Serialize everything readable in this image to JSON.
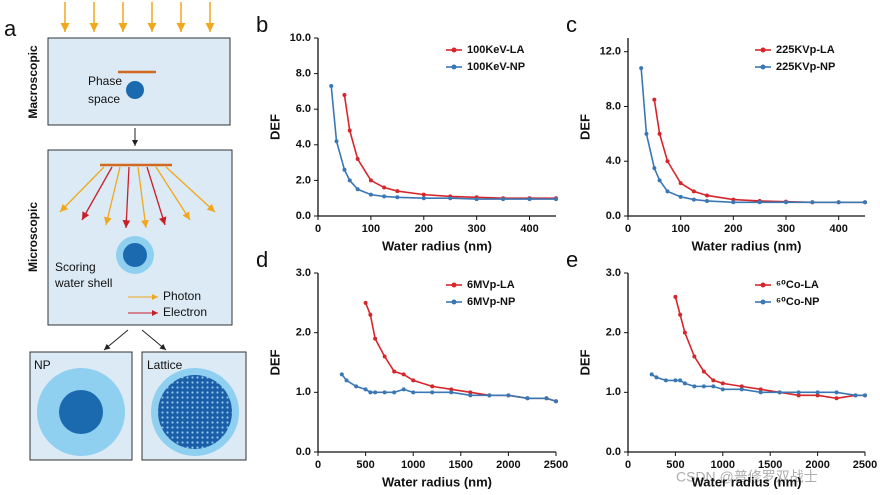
{
  "diagram": {
    "panel_label": "a",
    "macro_label": "Macroscopic",
    "phase": "Phase",
    "space": "space",
    "micro_label": "Microscopic",
    "scoring": "Scoring",
    "water_shell": "water shell",
    "photon": "Photon",
    "electron": "Electron",
    "np": "NP",
    "lattice": "Lattice"
  },
  "watermark": "CSDN @普修罗双战士",
  "chart_data": [
    {
      "type": "line",
      "panel": "b",
      "xlabel": "Water radius (nm)",
      "ylabel": "DEF",
      "legend": "upper right",
      "x": [
        25,
        35,
        50,
        60,
        75,
        100,
        125,
        150,
        200,
        250,
        300,
        350,
        400,
        450
      ],
      "series": [
        {
          "name": "100KeV-LA",
          "color": "#d7262b",
          "values": [
            null,
            null,
            6.8,
            4.8,
            3.2,
            2.0,
            1.6,
            1.4,
            1.2,
            1.1,
            1.05,
            1.0,
            1.0,
            1.0
          ]
        },
        {
          "name": "100KeV-NP",
          "color": "#3a78b5",
          "values": [
            7.3,
            4.2,
            2.6,
            2.0,
            1.5,
            1.2,
            1.1,
            1.05,
            1.0,
            1.0,
            0.95,
            0.95,
            0.95,
            0.95
          ]
        }
      ],
      "xlim": [
        0,
        450
      ],
      "xticks": [
        0,
        100,
        200,
        300,
        400
      ],
      "ylim": [
        0,
        10
      ],
      "yticks": [
        {
          "value": 0,
          "label": "0.0"
        },
        {
          "value": 2,
          "label": "2.0"
        },
        {
          "value": 4,
          "label": "4.0"
        },
        {
          "value": 6,
          "label": "6.0"
        },
        {
          "value": 8,
          "label": "8.0"
        },
        {
          "value": 10,
          "label": "10.0"
        }
      ]
    },
    {
      "type": "line",
      "panel": "c",
      "xlabel": "Water radius (nm)",
      "ylabel": "DEF",
      "legend": "upper right",
      "x": [
        25,
        35,
        50,
        60,
        75,
        100,
        125,
        150,
        200,
        250,
        300,
        350,
        400,
        450
      ],
      "series": [
        {
          "name": "225KVp-LA",
          "color": "#d7262b",
          "values": [
            null,
            null,
            8.5,
            6.0,
            4.0,
            2.4,
            1.8,
            1.5,
            1.2,
            1.1,
            1.05,
            1.0,
            1.0,
            1.0
          ]
        },
        {
          "name": "225KVp-NP",
          "color": "#3a78b5",
          "values": [
            10.8,
            6.0,
            3.5,
            2.6,
            1.8,
            1.4,
            1.2,
            1.1,
            1.0,
            1.0,
            1.0,
            1.0,
            1.0,
            1.0
          ]
        }
      ],
      "xlim": [
        0,
        450
      ],
      "xticks": [
        0,
        100,
        200,
        300,
        400
      ],
      "ylim": [
        0,
        13
      ],
      "yticks": [
        {
          "value": 0,
          "label": "0.0"
        },
        {
          "value": 4,
          "label": "4.0"
        },
        {
          "value": 8,
          "label": "8.0"
        },
        {
          "value": 12,
          "label": "12.0"
        }
      ]
    },
    {
      "type": "line",
      "panel": "d",
      "xlabel": "Water radius (nm)",
      "ylabel": "DEF",
      "legend": "upper right",
      "x": [
        250,
        300,
        400,
        500,
        550,
        600,
        700,
        800,
        900,
        1000,
        1200,
        1400,
        1600,
        1800,
        2000,
        2200,
        2400,
        2500
      ],
      "series": [
        {
          "name": "6MVp-LA",
          "color": "#d7262b",
          "values": [
            null,
            null,
            null,
            2.5,
            2.3,
            1.9,
            1.6,
            1.35,
            1.3,
            1.2,
            1.1,
            1.05,
            1.0,
            0.95,
            0.95,
            0.9,
            0.9,
            0.85
          ]
        },
        {
          "name": "6MVp-NP",
          "color": "#3a78b5",
          "values": [
            1.3,
            1.2,
            1.1,
            1.05,
            1.0,
            1.0,
            1.0,
            1.0,
            1.05,
            1.0,
            1.0,
            1.0,
            0.95,
            0.95,
            0.95,
            0.9,
            0.9,
            0.85
          ]
        }
      ],
      "xlim": [
        0,
        2500
      ],
      "xticks": [
        0,
        500,
        1000,
        1500,
        2000,
        2500
      ],
      "ylim": [
        0,
        3
      ],
      "yticks": [
        {
          "value": 0,
          "label": "0.0"
        },
        {
          "value": 1,
          "label": "1.0"
        },
        {
          "value": 2,
          "label": "2.0"
        },
        {
          "value": 3,
          "label": "3.0"
        }
      ]
    },
    {
      "type": "line",
      "panel": "e",
      "xlabel": "Water radius (nm)",
      "ylabel": "DEF",
      "legend": "upper right",
      "x": [
        250,
        300,
        400,
        500,
        550,
        600,
        700,
        800,
        900,
        1000,
        1200,
        1400,
        1600,
        1800,
        2000,
        2200,
        2400,
        2500
      ],
      "series": [
        {
          "name": "⁶⁰Co-LA",
          "color": "#d7262b",
          "values": [
            null,
            null,
            null,
            2.6,
            2.3,
            2.0,
            1.6,
            1.35,
            1.2,
            1.15,
            1.1,
            1.05,
            1.0,
            0.95,
            0.95,
            0.9,
            0.95,
            0.95
          ]
        },
        {
          "name": "⁶⁰Co-NP",
          "color": "#3a78b5",
          "values": [
            1.3,
            1.25,
            1.2,
            1.2,
            1.2,
            1.15,
            1.1,
            1.1,
            1.1,
            1.05,
            1.05,
            1.0,
            1.0,
            1.0,
            1.0,
            1.0,
            0.95,
            0.95
          ]
        }
      ],
      "xlim": [
        0,
        2500
      ],
      "xticks": [
        0,
        500,
        1000,
        1500,
        2000,
        2500
      ],
      "ylim": [
        0,
        3
      ],
      "yticks": [
        {
          "value": 0,
          "label": "0.0"
        },
        {
          "value": 1,
          "label": "1.0"
        },
        {
          "value": 2,
          "label": "2.0"
        },
        {
          "value": 3,
          "label": "3.0"
        }
      ]
    }
  ]
}
